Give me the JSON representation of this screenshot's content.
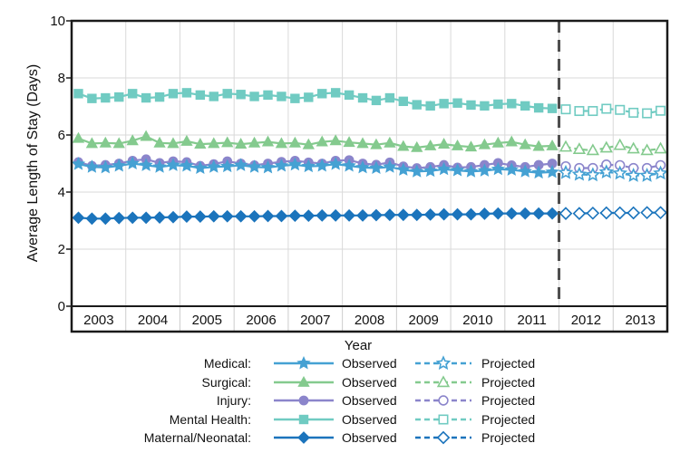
{
  "chart_data": {
    "type": "line",
    "title": "",
    "xlabel": "Year",
    "ylabel": "Average Length of Stay (Days)",
    "ylim": [
      0,
      10
    ],
    "yticks": [
      0,
      2,
      4,
      6,
      8,
      10
    ],
    "years": [
      2003,
      2004,
      2005,
      2006,
      2007,
      2008,
      2009,
      2010,
      2011,
      2012,
      2013
    ],
    "points_per_year": 4,
    "divider_year": 2012,
    "grid": "light gray; horizontal at even values, vertical at year boundaries",
    "legend_position": "bottom",
    "legend": {
      "observed_label": "Observed",
      "projected_label": "Projected"
    },
    "frame_color": "#1a1a1a",
    "gridline_color": "#d9d9d9",
    "divider_color": "#4d4d4d",
    "draw_order": [
      3,
      1,
      2,
      0,
      4
    ],
    "series": [
      {
        "name": "Medical",
        "label": "Medical:",
        "marker": "star",
        "color": "#45a1d3",
        "observed": [
          4.98,
          4.88,
          4.86,
          4.92,
          5.0,
          4.94,
          4.88,
          4.94,
          4.92,
          4.84,
          4.88,
          4.9,
          4.94,
          4.88,
          4.86,
          4.92,
          4.96,
          4.9,
          4.92,
          4.98,
          4.92,
          4.86,
          4.84,
          4.88,
          4.78,
          4.72,
          4.74,
          4.8,
          4.76,
          4.72,
          4.75,
          4.8,
          4.78,
          4.72,
          4.68,
          4.7
        ],
        "projected": [
          4.68,
          4.62,
          4.6,
          4.7,
          4.66,
          4.58,
          4.58,
          4.66
        ]
      },
      {
        "name": "Surgical",
        "label": "Surgical:",
        "marker": "triangle",
        "color": "#84ca8e",
        "observed": [
          5.88,
          5.7,
          5.72,
          5.7,
          5.8,
          5.95,
          5.72,
          5.7,
          5.78,
          5.68,
          5.7,
          5.73,
          5.68,
          5.72,
          5.76,
          5.7,
          5.72,
          5.66,
          5.76,
          5.8,
          5.74,
          5.7,
          5.66,
          5.72,
          5.6,
          5.56,
          5.62,
          5.68,
          5.62,
          5.58,
          5.66,
          5.72,
          5.76,
          5.66,
          5.6,
          5.62
        ],
        "projected": [
          5.58,
          5.5,
          5.46,
          5.55,
          5.64,
          5.52,
          5.46,
          5.52
        ]
      },
      {
        "name": "Injury",
        "label": "Injury:",
        "marker": "circle",
        "color": "#8b85cb",
        "observed": [
          5.05,
          4.92,
          4.95,
          5.0,
          5.1,
          5.15,
          5.02,
          5.08,
          5.05,
          4.92,
          4.98,
          5.08,
          5.0,
          4.94,
          5.0,
          5.06,
          5.1,
          5.04,
          5.0,
          5.1,
          5.12,
          5.0,
          4.96,
          5.04,
          4.9,
          4.84,
          4.88,
          4.95,
          4.86,
          4.88,
          4.95,
          5.02,
          4.94,
          4.88,
          4.95,
          5.0
        ],
        "projected": [
          4.9,
          4.84,
          4.84,
          4.96,
          4.94,
          4.84,
          4.84,
          4.94
        ]
      },
      {
        "name": "Mental Health",
        "label": "Mental Health:",
        "marker": "square",
        "color": "#70cbc2",
        "observed": [
          7.45,
          7.28,
          7.3,
          7.33,
          7.45,
          7.3,
          7.33,
          7.45,
          7.48,
          7.4,
          7.35,
          7.45,
          7.42,
          7.35,
          7.4,
          7.35,
          7.28,
          7.32,
          7.45,
          7.48,
          7.4,
          7.3,
          7.21,
          7.3,
          7.18,
          7.06,
          7.02,
          7.1,
          7.12,
          7.05,
          7.02,
          7.08,
          7.1,
          7.02,
          6.95,
          6.93
        ],
        "projected": [
          6.9,
          6.84,
          6.84,
          6.92,
          6.88,
          6.78,
          6.76,
          6.85
        ]
      },
      {
        "name": "Maternal/Neonatal",
        "label": "Maternal/Neonatal:",
        "marker": "diamond",
        "color": "#1b74bc",
        "observed": [
          3.1,
          3.07,
          3.07,
          3.09,
          3.1,
          3.1,
          3.11,
          3.12,
          3.14,
          3.14,
          3.15,
          3.15,
          3.15,
          3.15,
          3.16,
          3.16,
          3.17,
          3.17,
          3.18,
          3.18,
          3.18,
          3.18,
          3.19,
          3.2,
          3.2,
          3.2,
          3.21,
          3.22,
          3.22,
          3.22,
          3.24,
          3.25,
          3.25,
          3.25,
          3.25,
          3.25
        ],
        "projected": [
          3.25,
          3.25,
          3.26,
          3.27,
          3.27,
          3.27,
          3.28,
          3.28
        ]
      }
    ]
  }
}
